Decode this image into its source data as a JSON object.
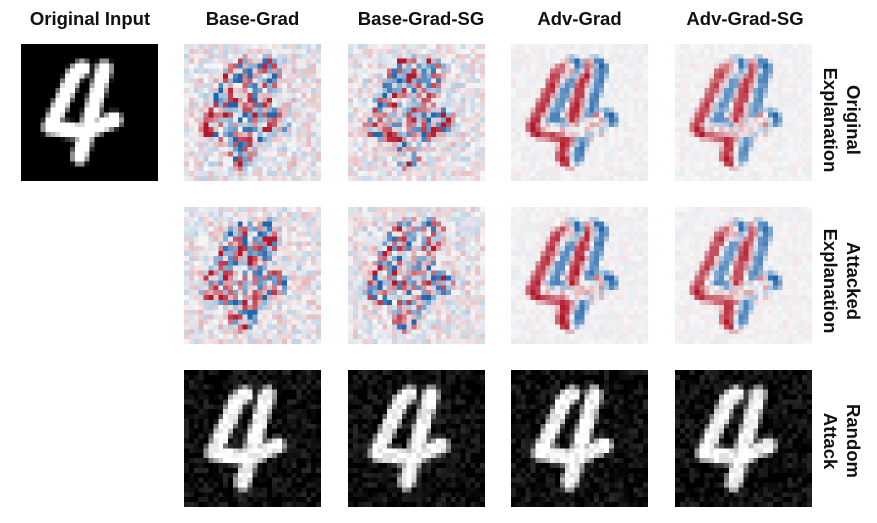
{
  "columns": [
    "Original Input",
    "Base-Grad",
    "Base-Grad-SG",
    "Adv-Grad",
    "Adv-Grad-SG"
  ],
  "rows": [
    {
      "line1": "Original",
      "line2": "Explanation",
      "kind": "explanation"
    },
    {
      "line1": "Attacked",
      "line2": "Explanation",
      "kind": "explanation"
    },
    {
      "line1": "Random",
      "line2": "Attack",
      "kind": "noisy-digit"
    }
  ],
  "input_image": {
    "kind": "digit",
    "digit": "4"
  },
  "colors": {
    "positive": "#b2182b",
    "negative": "#2166ac",
    "neutral": "#f7f7f7",
    "background": "#ffffff"
  }
}
